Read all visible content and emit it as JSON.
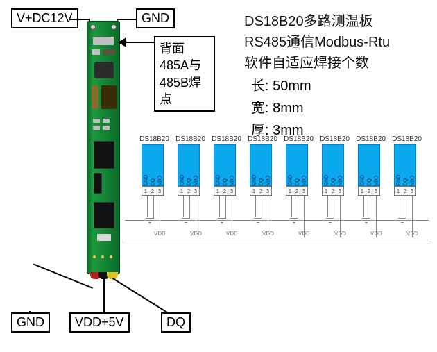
{
  "top_labels": {
    "vdc": "V+DC12V",
    "gnd": "GND"
  },
  "bottom_labels": {
    "gnd": "GND",
    "vdd5v": "VDD+5V",
    "dq": "DQ"
  },
  "back_note": {
    "l1": "背面",
    "l2": "485A与",
    "l3": "485B焊",
    "l4": "点"
  },
  "description": {
    "line1": "DS18B20多路测温板",
    "line2": "RS485通信Modbus-Rtu",
    "line3": "软件自适应焊接个数"
  },
  "dimensions": {
    "len_label": "长:",
    "len_val": "50mm",
    "wid_label": "宽:",
    "wid_val": "8mm",
    "thk_label": "厚:",
    "thk_val": "3mm"
  },
  "sensor": {
    "part": "DS18B20",
    "pins": {
      "p1": "GND",
      "p2": "DQ",
      "p3": "VDD"
    },
    "nums": {
      "n1": "1",
      "n2": "2",
      "n3": "3"
    },
    "vdd_text": "VDD",
    "count": 8
  },
  "colors": {
    "pcb_green": "#0b6b2b",
    "sensor_blue": "#0aa8ef",
    "border": "#000000",
    "bus_gray": "#888888"
  }
}
